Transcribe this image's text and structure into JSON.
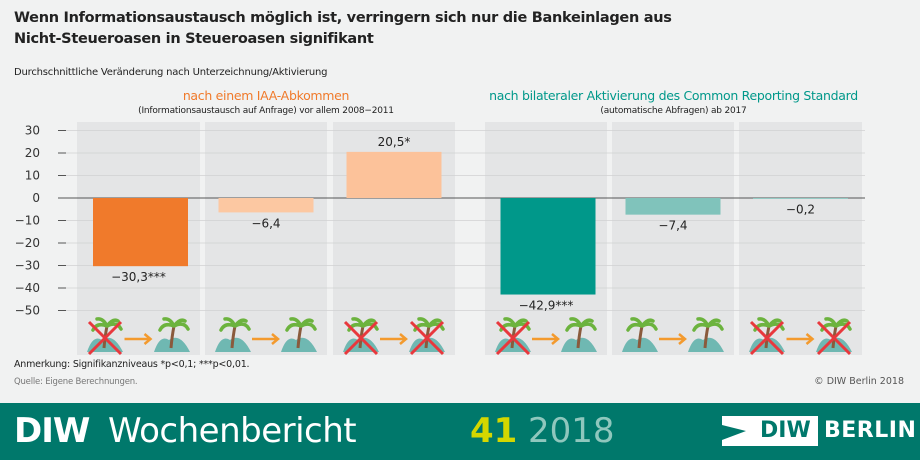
{
  "chart_data": {
    "type": "bar",
    "title": "Wenn Informationsaustausch möglich ist, verringern sich nur die Bankeinlagen aus Nicht-Steueroasen in Steueroasen signifikant",
    "subtitle": "Durchschnittliche Veränderung nach Unterzeichnung/Aktivierung",
    "ylim": [
      -50,
      30
    ],
    "yticks": [
      "30",
      "20",
      "10",
      "0",
      "−10",
      "−20",
      "−30",
      "−40",
      "−50"
    ],
    "ytick_values": [
      30,
      20,
      10,
      0,
      -10,
      -20,
      -30,
      -40,
      -50
    ],
    "grid": true,
    "groups": [
      {
        "title": "nach einem IAA-Abkommen",
        "note": "(Informationsaustausch auf Anfrage) vor allem 2008−2011",
        "color": "#f07a2b",
        "bars": [
          {
            "value": -30.3,
            "label": "−30,3***",
            "color": "#f07a2b",
            "from": "haven-crossed",
            "to": "haven"
          },
          {
            "value": -6.4,
            "label": "−6,4",
            "color": "#fcc8a2",
            "from": "haven",
            "to": "haven"
          },
          {
            "value": 20.5,
            "label": "20,5*",
            "color": "#fcc29a",
            "from": "haven-crossed",
            "to": "haven-crossed"
          }
        ]
      },
      {
        "title": "nach bilateraler Aktivierung des Common Reporting Standard",
        "note": "(automatische Abfragen) ab 2017",
        "color": "#00988a",
        "bars": [
          {
            "value": -42.9,
            "label": "−42,9***",
            "color": "#00988a",
            "from": "haven-crossed",
            "to": "haven"
          },
          {
            "value": -7.4,
            "label": "−7,4",
            "color": "#80c3bb",
            "from": "haven",
            "to": "haven"
          },
          {
            "value": -0.2,
            "label": "−0,2",
            "color": "#80c3bb",
            "from": "haven-crossed",
            "to": "haven-crossed"
          }
        ]
      }
    ]
  },
  "note": "Anmerkung: Signifikanzniveaus *p<0,1; ***p<0,01.",
  "source": "Quelle: Eigene Berechnungen.",
  "copyright": "© DIW Berlin 2018",
  "footer": {
    "diw": "DIW",
    "wochenbericht": "Wochenbericht",
    "issue": "41",
    "year": "2018",
    "logo_diw": "DIW",
    "logo_berlin": "BERLIN"
  }
}
